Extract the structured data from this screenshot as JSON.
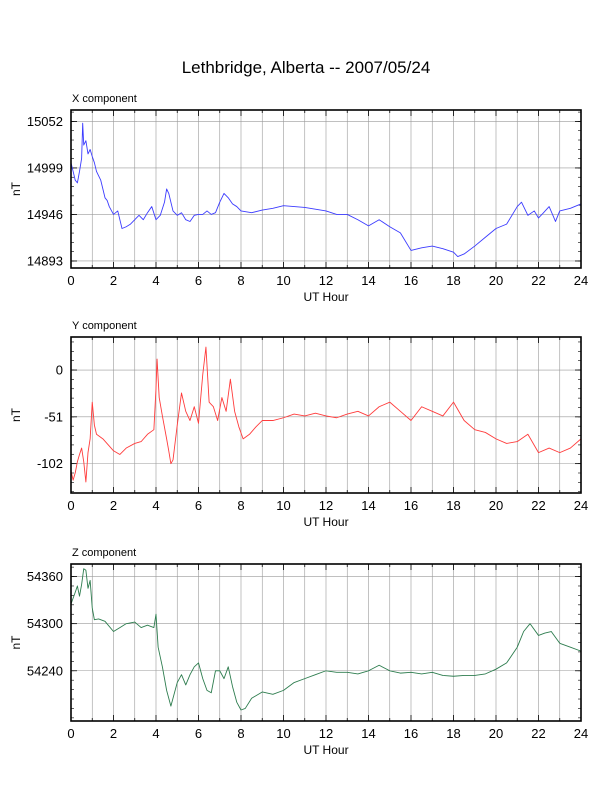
{
  "title": "Lethbridge, Alberta -- 2007/05/24",
  "chart_data": [
    {
      "type": "line",
      "panel_label": "X component",
      "xlabel": "UT Hour",
      "ylabel": "nT",
      "xlim": [
        0,
        24
      ],
      "xticks": [
        0,
        2,
        4,
        6,
        8,
        10,
        12,
        14,
        16,
        18,
        20,
        22,
        24
      ],
      "ylim": [
        14885,
        15065
      ],
      "yticks": [
        14893,
        14946,
        14999,
        15052
      ],
      "grid": true,
      "color": "#3c3cff",
      "x": [
        0,
        0.1,
        0.2,
        0.3,
        0.4,
        0.5,
        0.55,
        0.6,
        0.7,
        0.8,
        0.9,
        1.0,
        1.1,
        1.2,
        1.3,
        1.4,
        1.5,
        1.6,
        1.7,
        1.8,
        2.0,
        2.2,
        2.4,
        2.6,
        2.8,
        3.0,
        3.2,
        3.4,
        3.6,
        3.8,
        4.0,
        4.2,
        4.4,
        4.5,
        4.6,
        4.8,
        5.0,
        5.2,
        5.4,
        5.6,
        5.8,
        6.0,
        6.2,
        6.4,
        6.6,
        6.8,
        7.0,
        7.2,
        7.4,
        7.6,
        7.8,
        8.0,
        8.5,
        9.0,
        9.5,
        10.0,
        10.5,
        11.0,
        11.5,
        12.0,
        12.5,
        13.0,
        13.5,
        14.0,
        14.5,
        15.0,
        15.5,
        16.0,
        16.5,
        17.0,
        17.5,
        18.0,
        18.2,
        18.5,
        19.0,
        19.5,
        20.0,
        20.5,
        21.0,
        21.2,
        21.5,
        21.8,
        22.0,
        22.2,
        22.5,
        22.8,
        23.0,
        23.5,
        24.0
      ],
      "values": [
        15005,
        14995,
        14985,
        14982,
        14995,
        15010,
        15050,
        15025,
        15030,
        15015,
        15020,
        15012,
        15005,
        14995,
        14990,
        14985,
        14975,
        14965,
        14962,
        14955,
        14946,
        14950,
        14930,
        14932,
        14935,
        14940,
        14945,
        14940,
        14948,
        14955,
        14940,
        14945,
        14960,
        14975,
        14970,
        14950,
        14945,
        14948,
        14940,
        14938,
        14945,
        14946,
        14946,
        14950,
        14946,
        14948,
        14960,
        14970,
        14965,
        14958,
        14955,
        14950,
        14948,
        14951,
        14953,
        14956,
        14955,
        14954,
        14952,
        14950,
        14946,
        14946,
        14940,
        14933,
        14940,
        14932,
        14925,
        14905,
        14908,
        14910,
        14907,
        14903,
        14898,
        14901,
        14910,
        14920,
        14930,
        14935,
        14955,
        14960,
        14945,
        14950,
        14942,
        14947,
        14955,
        14938,
        14950,
        14953,
        14958
      ]
    },
    {
      "type": "line",
      "panel_label": "Y component",
      "xlabel": "UT Hour",
      "ylabel": "nT",
      "xlim": [
        0,
        24
      ],
      "xticks": [
        0,
        2,
        4,
        6,
        8,
        10,
        12,
        14,
        16,
        18,
        20,
        22,
        24
      ],
      "ylim": [
        -134,
        36
      ],
      "yticks": [
        -102,
        -51,
        0
      ],
      "grid": true,
      "color": "#ff3c3c",
      "x": [
        0,
        0.1,
        0.2,
        0.3,
        0.4,
        0.5,
        0.6,
        0.7,
        0.8,
        0.9,
        1.0,
        1.1,
        1.2,
        1.5,
        2.0,
        2.3,
        2.6,
        3.0,
        3.3,
        3.6,
        3.9,
        4.0,
        4.05,
        4.15,
        4.3,
        4.5,
        4.6,
        4.7,
        4.8,
        5.0,
        5.2,
        5.4,
        5.6,
        5.8,
        6.0,
        6.2,
        6.35,
        6.5,
        6.7,
        6.9,
        7.1,
        7.3,
        7.5,
        7.7,
        7.9,
        8.1,
        8.4,
        8.7,
        9.0,
        9.5,
        10.0,
        10.5,
        11.0,
        11.5,
        12.0,
        12.5,
        13.0,
        13.5,
        14.0,
        14.5,
        15.0,
        15.5,
        16.0,
        16.5,
        17.0,
        17.5,
        18.0,
        18.5,
        19.0,
        19.5,
        20.0,
        20.5,
        21.0,
        21.5,
        22.0,
        22.5,
        23.0,
        23.5,
        24.0
      ],
      "values": [
        -110,
        -120,
        -112,
        -100,
        -92,
        -85,
        -100,
        -122,
        -90,
        -75,
        -35,
        -60,
        -70,
        -75,
        -88,
        -92,
        -85,
        -80,
        -78,
        -70,
        -65,
        -20,
        12,
        -30,
        -50,
        -75,
        -88,
        -102,
        -98,
        -60,
        -25,
        -45,
        -55,
        -40,
        -58,
        -5,
        25,
        -35,
        -40,
        -55,
        -30,
        -45,
        -10,
        -45,
        -62,
        -75,
        -70,
        -62,
        -55,
        -55,
        -52,
        -48,
        -50,
        -47,
        -50,
        -52,
        -48,
        -45,
        -50,
        -40,
        -35,
        -45,
        -55,
        -40,
        -45,
        -50,
        -35,
        -55,
        -65,
        -68,
        -75,
        -80,
        -78,
        -70,
        -90,
        -85,
        -90,
        -85,
        -75
      ]
    },
    {
      "type": "line",
      "panel_label": "Z component",
      "xlabel": "UT Hour",
      "ylabel": "nT",
      "xlim": [
        0,
        24
      ],
      "xticks": [
        0,
        2,
        4,
        6,
        8,
        10,
        12,
        14,
        16,
        18,
        20,
        22,
        24
      ],
      "ylim": [
        54176,
        54376
      ],
      "yticks": [
        54240,
        54300,
        54360
      ],
      "grid": true,
      "color": "#2e7d4f",
      "x": [
        0,
        0.2,
        0.3,
        0.4,
        0.5,
        0.6,
        0.7,
        0.8,
        0.9,
        1.0,
        1.1,
        1.3,
        1.6,
        2.0,
        2.3,
        2.6,
        3.0,
        3.3,
        3.6,
        3.9,
        4.0,
        4.1,
        4.3,
        4.5,
        4.7,
        4.8,
        5.0,
        5.2,
        5.4,
        5.6,
        5.8,
        6.0,
        6.2,
        6.4,
        6.6,
        6.8,
        7.0,
        7.2,
        7.4,
        7.6,
        7.8,
        8.0,
        8.2,
        8.5,
        9.0,
        9.5,
        10.0,
        10.5,
        11.0,
        11.5,
        12.0,
        12.5,
        13.0,
        13.5,
        14.0,
        14.5,
        15.0,
        15.5,
        16.0,
        16.5,
        17.0,
        17.5,
        18.0,
        18.5,
        19.0,
        19.5,
        20.0,
        20.5,
        21.0,
        21.3,
        21.6,
        22.0,
        22.3,
        22.6,
        23.0,
        23.5,
        24.0
      ],
      "values": [
        54325,
        54340,
        54348,
        54335,
        54350,
        54370,
        54368,
        54345,
        54355,
        54320,
        54305,
        54306,
        54303,
        54290,
        54295,
        54300,
        54302,
        54295,
        54298,
        54295,
        54312,
        54270,
        54245,
        54215,
        54195,
        54205,
        54225,
        54235,
        54222,
        54235,
        54245,
        54250,
        54230,
        54215,
        54212,
        54240,
        54240,
        54230,
        54245,
        54220,
        54200,
        54190,
        54192,
        54205,
        54213,
        54210,
        54215,
        54225,
        54230,
        54235,
        54240,
        54238,
        54238,
        54236,
        54240,
        54247,
        54240,
        54237,
        54238,
        54236,
        54238,
        54234,
        54233,
        54234,
        54234,
        54236,
        54242,
        54250,
        54270,
        54290,
        54300,
        54285,
        54288,
        54290,
        54275,
        54270,
        54265
      ]
    }
  ]
}
